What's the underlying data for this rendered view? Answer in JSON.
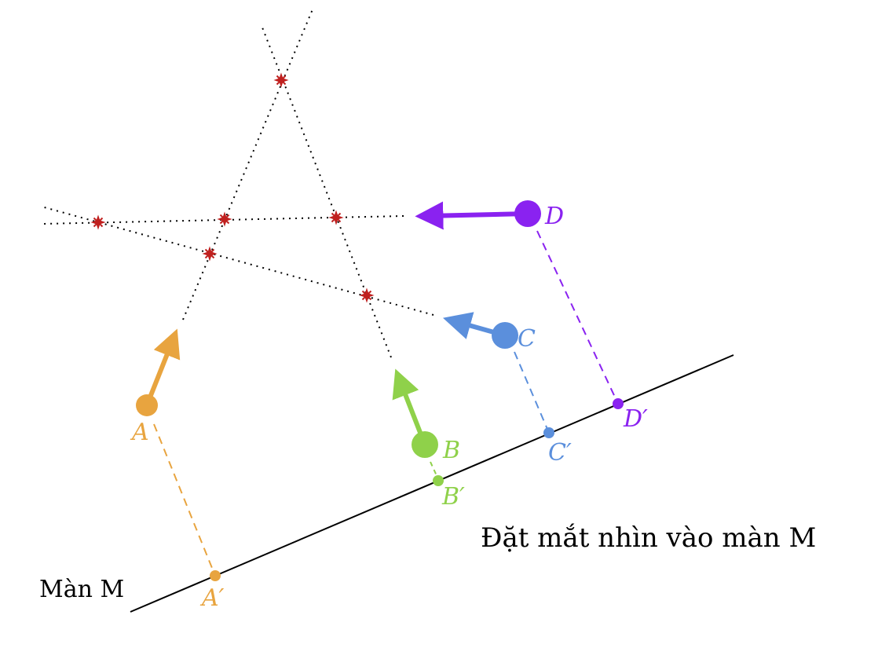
{
  "diagram": {
    "screen_label": "Màn M",
    "caption": "Đặt mắt nhìn vào màn M",
    "colors": {
      "A": "#e8a43f",
      "B": "#8fd14a",
      "C": "#5b8fdc",
      "D": "#8a22f0",
      "intersection": "#c0201f",
      "line": "#000000"
    },
    "points": {
      "A": {
        "label": "A",
        "proj_label": "A′"
      },
      "B": {
        "label": "B",
        "proj_label": "B′"
      },
      "C": {
        "label": "C",
        "proj_label": "C′"
      },
      "D": {
        "label": "D",
        "proj_label": "D′"
      }
    }
  }
}
